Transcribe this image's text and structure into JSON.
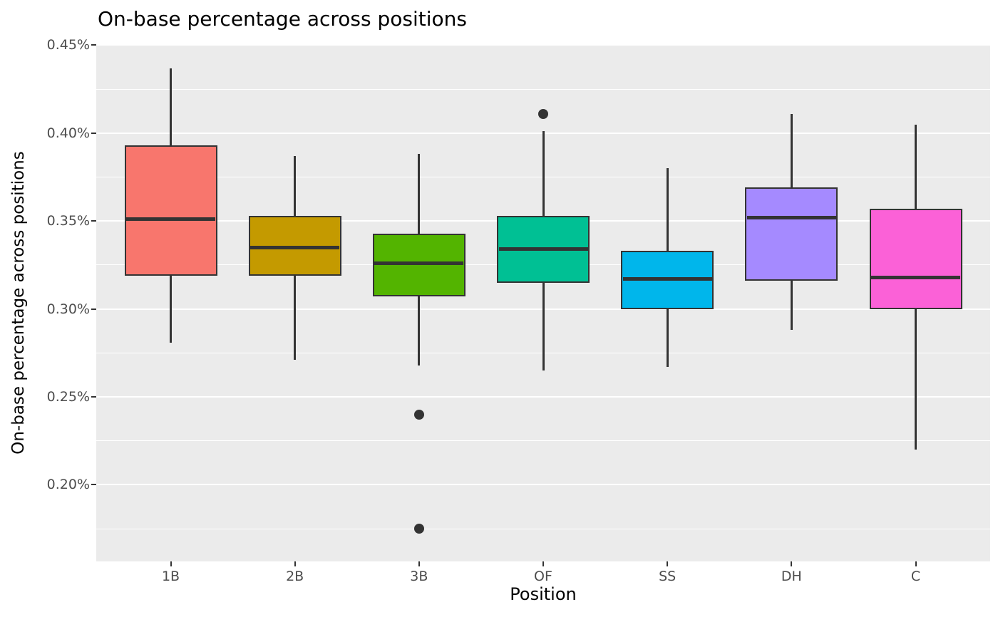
{
  "chart": {
    "title": "On-base percentage across positions",
    "xlabel": "Position",
    "ylabel": "On-base percentage across positions"
  },
  "chart_data": {
    "type": "boxplot",
    "title": "On-base percentage across positions",
    "xlabel": "Position",
    "ylabel": "On-base percentage across positions",
    "units": "percent",
    "categories": [
      "1B",
      "2B",
      "3B",
      "OF",
      "SS",
      "DH",
      "C"
    ],
    "series": [
      {
        "name": "1B",
        "color": "#F8766D",
        "whisker_low": 0.281,
        "q1": 0.319,
        "median": 0.351,
        "q3": 0.393,
        "whisker_high": 0.437,
        "outliers": []
      },
      {
        "name": "2B",
        "color": "#C49A00",
        "whisker_low": 0.271,
        "q1": 0.319,
        "median": 0.335,
        "q3": 0.353,
        "whisker_high": 0.387,
        "outliers": []
      },
      {
        "name": "3B",
        "color": "#53B400",
        "whisker_low": 0.268,
        "q1": 0.307,
        "median": 0.326,
        "q3": 0.343,
        "whisker_high": 0.388,
        "outliers": [
          0.24,
          0.175
        ]
      },
      {
        "name": "OF",
        "color": "#00C094",
        "whisker_low": 0.265,
        "q1": 0.315,
        "median": 0.334,
        "q3": 0.353,
        "whisker_high": 0.401,
        "outliers": [
          0.411
        ]
      },
      {
        "name": "SS",
        "color": "#00B6EB",
        "whisker_low": 0.267,
        "q1": 0.3,
        "median": 0.317,
        "q3": 0.333,
        "whisker_high": 0.38,
        "outliers": []
      },
      {
        "name": "DH",
        "color": "#A58AFF",
        "whisker_low": 0.288,
        "q1": 0.316,
        "median": 0.352,
        "q3": 0.369,
        "whisker_high": 0.411,
        "outliers": []
      },
      {
        "name": "C",
        "color": "#FB61D7",
        "whisker_low": 0.22,
        "q1": 0.3,
        "median": 0.318,
        "q3": 0.357,
        "whisker_high": 0.405,
        "outliers": []
      }
    ],
    "y_ticks": [
      {
        "value": 0.45,
        "label": "0.45%"
      },
      {
        "value": 0.4,
        "label": "0.40%"
      },
      {
        "value": 0.35,
        "label": "0.35%"
      },
      {
        "value": 0.3,
        "label": "0.30%"
      },
      {
        "value": 0.25,
        "label": "0.25%"
      },
      {
        "value": 0.2,
        "label": "0.20%"
      }
    ],
    "y_minor_gridlines": [
      0.425,
      0.375,
      0.325,
      0.275,
      0.225,
      0.175
    ],
    "ylim": [
      0.1564,
      0.4506
    ],
    "grid": true,
    "legend": "none",
    "colors": {
      "panel_background": "#EBEBEB",
      "gridline": "#FFFFFF",
      "box_border": "#333333",
      "median": "#333333",
      "whisker": "#333333",
      "outlier": "#333333",
      "tick_label": "#4D4D4D",
      "tick_mark": "#333333",
      "axis_title": "#000000",
      "title": "#000000"
    }
  }
}
